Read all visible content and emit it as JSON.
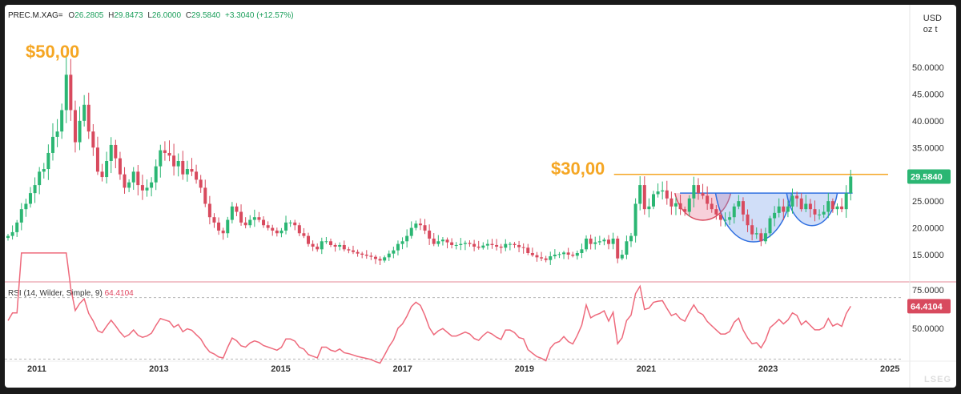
{
  "header": {
    "symbol": "PREC.M.XAG=",
    "open_label": "O",
    "open": "26.2805",
    "high_label": "H",
    "high": "29.8473",
    "low_label": "L",
    "low": "26.0000",
    "close_label": "C",
    "close": "29.5840",
    "change": "+3.3040 (+12.57%)"
  },
  "unit": {
    "line1": "USD",
    "line2": "oz t"
  },
  "rsi": {
    "label": "RSI (14, Wilder, Simple, 9)",
    "value": "64.4104"
  },
  "annotations": {
    "peak_label": "$50,00",
    "resistance_label": "$30,00"
  },
  "price_badge": "29.5840",
  "brand": "LSEG",
  "colors": {
    "up": "#2bb673",
    "down": "#d84a5e",
    "orange": "#f5a623",
    "blue": "#2f6fe0",
    "rsi": "#ee6a7c"
  },
  "chart_data": [
    {
      "type": "candlestick",
      "title": "",
      "y_ticks": [
        50,
        45,
        40,
        35,
        30,
        25,
        20,
        15
      ],
      "y_tick_labels": [
        "50.0000",
        "45.0000",
        "40.0000",
        "35.0000",
        "30.0000",
        "25.0000",
        "20.0000",
        "15.0000"
      ],
      "x_ticks": [
        "2011",
        "2013",
        "2015",
        "2017",
        "2019",
        "2021",
        "2023",
        "2025"
      ],
      "ylim": [
        10.5,
        57
      ],
      "x_range": [
        "2010-07",
        "2025-04"
      ],
      "resistance_level": 30,
      "neckline": 26.5,
      "last_close": 29.584,
      "monthly_close": [
        18.5,
        19.2,
        21.0,
        23.5,
        24.5,
        26.5,
        28.0,
        30.5,
        31.0,
        34.0,
        37.0,
        38.0,
        42.0,
        48.6,
        42.0,
        36.0,
        40.0,
        43.0,
        38.0,
        35.0,
        30.5,
        29.5,
        32.5,
        35.5,
        33.0,
        30.0,
        27.5,
        28.5,
        30.5,
        28.0,
        27.0,
        27.5,
        28.5,
        31.5,
        34.5,
        34.0,
        33.5,
        31.5,
        32.5,
        30.0,
        31.0,
        30.5,
        29.0,
        27.5,
        24.5,
        22.0,
        21.0,
        19.5,
        19.0,
        21.5,
        24.0,
        23.0,
        21.0,
        20.5,
        21.5,
        22.0,
        21.5,
        20.5,
        20.0,
        19.5,
        19.0,
        19.5,
        21.0,
        21.0,
        20.5,
        19.0,
        18.5,
        17.0,
        16.5,
        16.0,
        17.5,
        17.5,
        16.8,
        16.5,
        16.8,
        16.0,
        15.8,
        15.5,
        15.2,
        15.0,
        14.8,
        14.6,
        14.2,
        13.9,
        14.5,
        15.2,
        15.8,
        17.0,
        17.5,
        18.5,
        20.0,
        20.8,
        20.5,
        19.5,
        18.0,
        17.0,
        17.5,
        17.8,
        17.3,
        16.8,
        16.8,
        17.0,
        17.2,
        17.0,
        16.5,
        16.3,
        16.7,
        17.0,
        16.8,
        16.5,
        16.3,
        17.0,
        17.0,
        16.8,
        16.4,
        16.3,
        15.3,
        14.9,
        14.5,
        14.3,
        14.0,
        14.7,
        15.0,
        15.1,
        15.4,
        15.0,
        14.8,
        15.3,
        16.0,
        18.0,
        17.0,
        17.3,
        17.5,
        17.8,
        17.0,
        18.0,
        14.3,
        15.0,
        17.5,
        18.5,
        24.5,
        28.0,
        23.5,
        24.0,
        26.3,
        26.8,
        27.0,
        25.5,
        24.0,
        24.6,
        23.5,
        23.0,
        25.5,
        28.0,
        26.5,
        26.0,
        24.5,
        23.5,
        22.5,
        21.5,
        21.5,
        22.0,
        24.0,
        25.0,
        22.5,
        20.5,
        18.8,
        19.0,
        17.5,
        19.0,
        21.8,
        22.8,
        24.0,
        23.0,
        24.0,
        26.0,
        25.5,
        23.5,
        24.5,
        23.5,
        22.5,
        22.5,
        23.0,
        25.0,
        23.5,
        24.0,
        23.5,
        26.5,
        29.584
      ],
      "patterns": [
        {
          "type": "cup",
          "start": "2021-07",
          "end": "2022-06",
          "bottom": 21.5
        },
        {
          "type": "cup",
          "start": "2022-03",
          "end": "2023-06",
          "bottom": 17.5
        },
        {
          "type": "cup",
          "start": "2023-05",
          "end": "2024-03",
          "bottom": 20.5
        }
      ]
    },
    {
      "type": "line",
      "title": "RSI (14, Wilder, Simple, 9)",
      "y_ticks": [
        75,
        50
      ],
      "y_tick_labels": [
        "75.0000",
        "50.0000"
      ],
      "ylim": [
        24,
        90
      ],
      "levels": [
        70,
        30
      ],
      "last": 64.4104
    }
  ]
}
